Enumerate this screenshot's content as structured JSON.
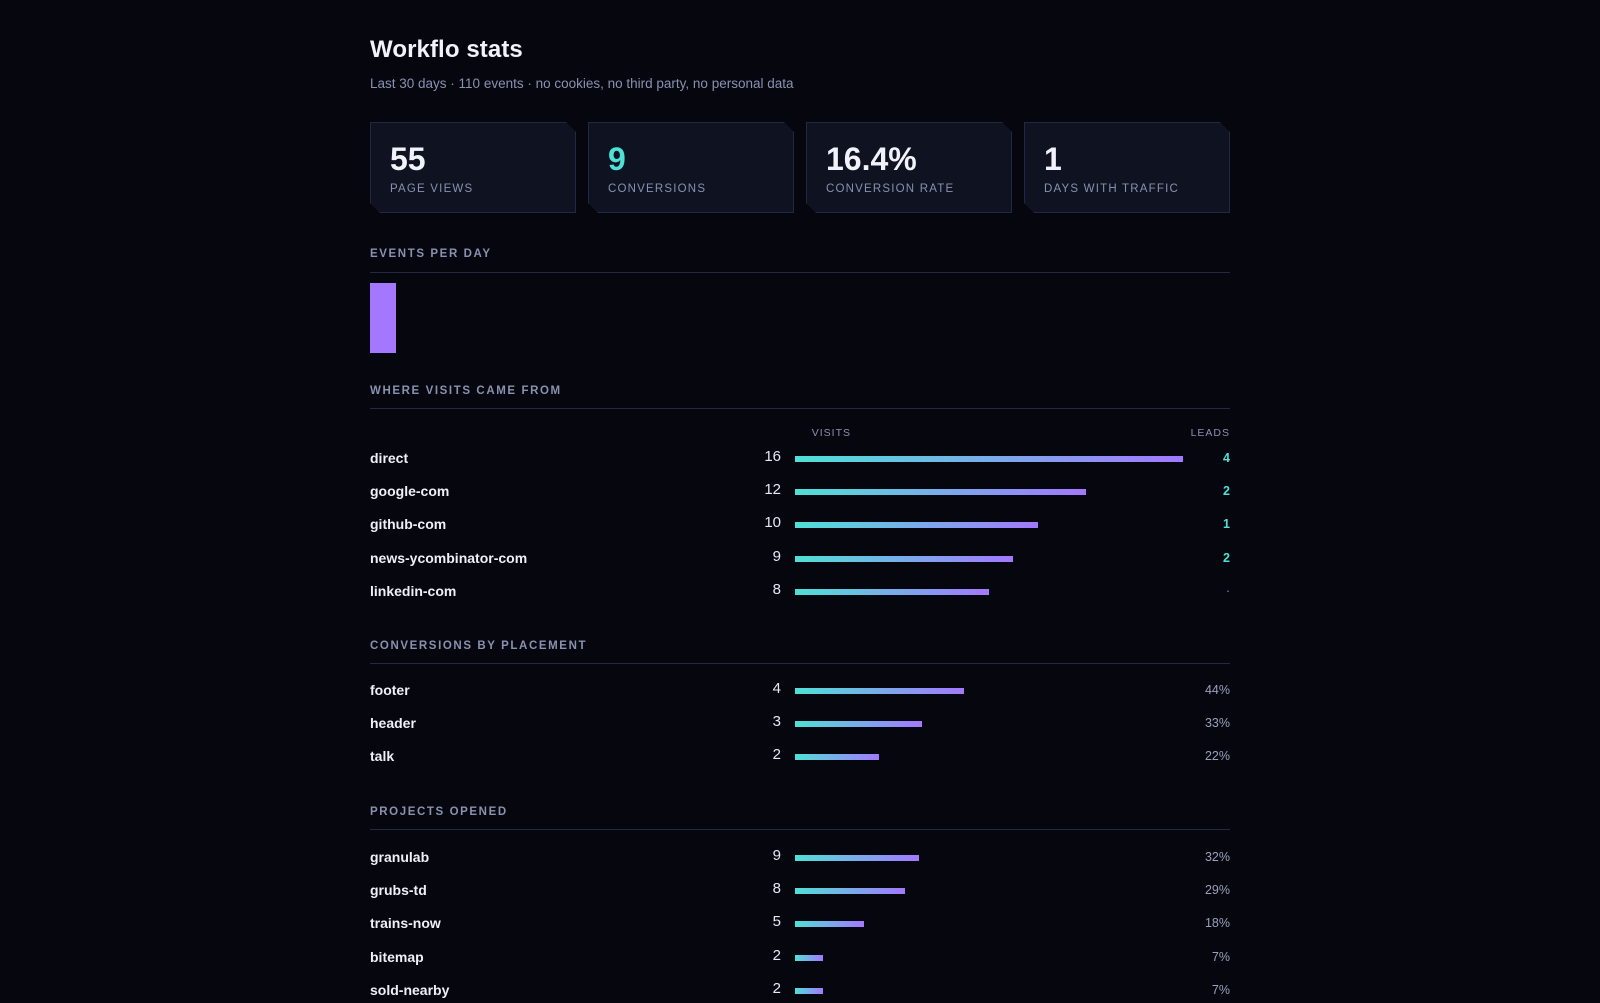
{
  "header": {
    "title": "Workflo stats",
    "subtitle": "Last 30 days · 110 events · no cookies, no third party, no personal data"
  },
  "cards": [
    {
      "value": "55",
      "label": "PAGE VIEWS",
      "accent": false
    },
    {
      "value": "9",
      "label": "CONVERSIONS",
      "accent": true
    },
    {
      "value": "16.4%",
      "label": "CONVERSION RATE",
      "accent": false
    },
    {
      "value": "1",
      "label": "DAYS WITH TRAFFIC",
      "accent": false
    }
  ],
  "events_per_day": {
    "title": "EVENTS PER DAY",
    "days": [
      110
    ],
    "bar_color": "#a378ff"
  },
  "sources": {
    "title": "WHERE VISITS CAME FROM",
    "visits_header": "VISITS",
    "leads_header": "LEADS",
    "rows": [
      {
        "name": "direct",
        "visits": 16,
        "leads": "4"
      },
      {
        "name": "google-com",
        "visits": 12,
        "leads": "2"
      },
      {
        "name": "github-com",
        "visits": 10,
        "leads": "1"
      },
      {
        "name": "news-ycombinator-com",
        "visits": 9,
        "leads": "2"
      },
      {
        "name": "linkedin-com",
        "visits": 8,
        "leads": "·"
      }
    ]
  },
  "placements": {
    "title": "CONVERSIONS BY PLACEMENT",
    "rows": [
      {
        "name": "footer",
        "count": 4,
        "pct": "44%"
      },
      {
        "name": "header",
        "count": 3,
        "pct": "33%"
      },
      {
        "name": "talk",
        "count": 2,
        "pct": "22%"
      }
    ]
  },
  "projects": {
    "title": "PROJECTS OPENED",
    "rows": [
      {
        "name": "granulab",
        "count": 9,
        "pct": "32%"
      },
      {
        "name": "grubs-td",
        "count": 8,
        "pct": "29%"
      },
      {
        "name": "trains-now",
        "count": 5,
        "pct": "18%"
      },
      {
        "name": "bitemap",
        "count": 2,
        "pct": "7%"
      },
      {
        "name": "sold-nearby",
        "count": 2,
        "pct": "7%"
      }
    ]
  },
  "colors": {
    "accent": "#4fe0d6",
    "purple": "#a378ff",
    "background": "#06070e"
  }
}
